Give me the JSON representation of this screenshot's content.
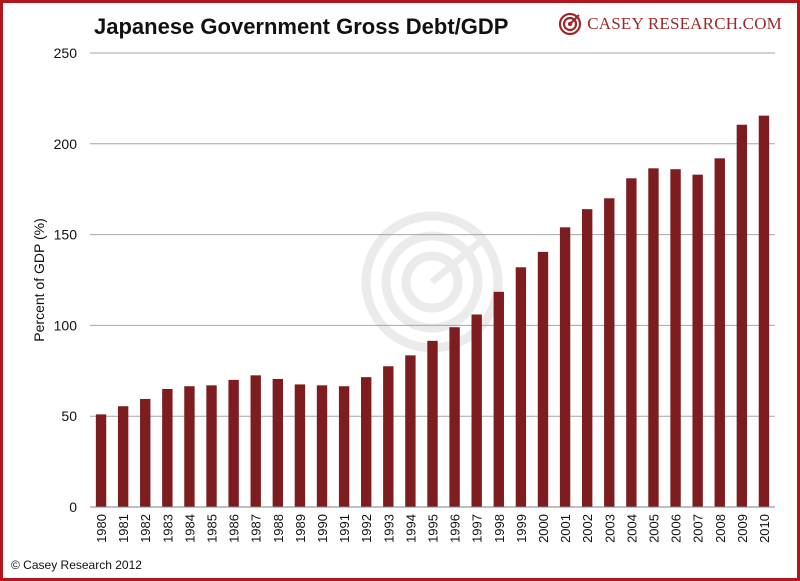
{
  "header": {
    "title": "Japanese Government Gross Debt/GDP",
    "brand": "CASEY RESEARCH.COM"
  },
  "footer": {
    "copyright": "© Casey Research 2012"
  },
  "colors": {
    "bar": "#7d1d1f",
    "frame": "#b0161c",
    "grid": "#a6a6a6",
    "brand": "#9a2a2a"
  },
  "icons": {
    "brand_logo": "target-logo-icon",
    "watermark": "target-watermark-icon"
  },
  "chart_data": {
    "type": "bar",
    "title": "Japanese Government Gross Debt/GDP",
    "xlabel": "",
    "ylabel": "Percent of GDP (%)",
    "ylim": [
      0,
      250
    ],
    "yticks": [
      0,
      50,
      100,
      150,
      200,
      250
    ],
    "grid": true,
    "legend": "none",
    "categories": [
      "1980",
      "1981",
      "1982",
      "1983",
      "1984",
      "1985",
      "1986",
      "1987",
      "1988",
      "1989",
      "1990",
      "1991",
      "1992",
      "1993",
      "1994",
      "1995",
      "1996",
      "1997",
      "1998",
      "1999",
      "2000",
      "2001",
      "2002",
      "2003",
      "2004",
      "2005",
      "2006",
      "2007",
      "2008",
      "2009",
      "2010"
    ],
    "values": [
      51,
      55.5,
      59.5,
      65,
      66.5,
      67,
      70,
      72.5,
      70.5,
      67.5,
      67,
      66.5,
      71.5,
      77.5,
      83.5,
      91.5,
      99,
      106,
      118.5,
      132,
      140.5,
      154,
      164,
      170,
      181,
      186.5,
      186,
      183,
      192,
      210.5,
      215.5
    ]
  }
}
